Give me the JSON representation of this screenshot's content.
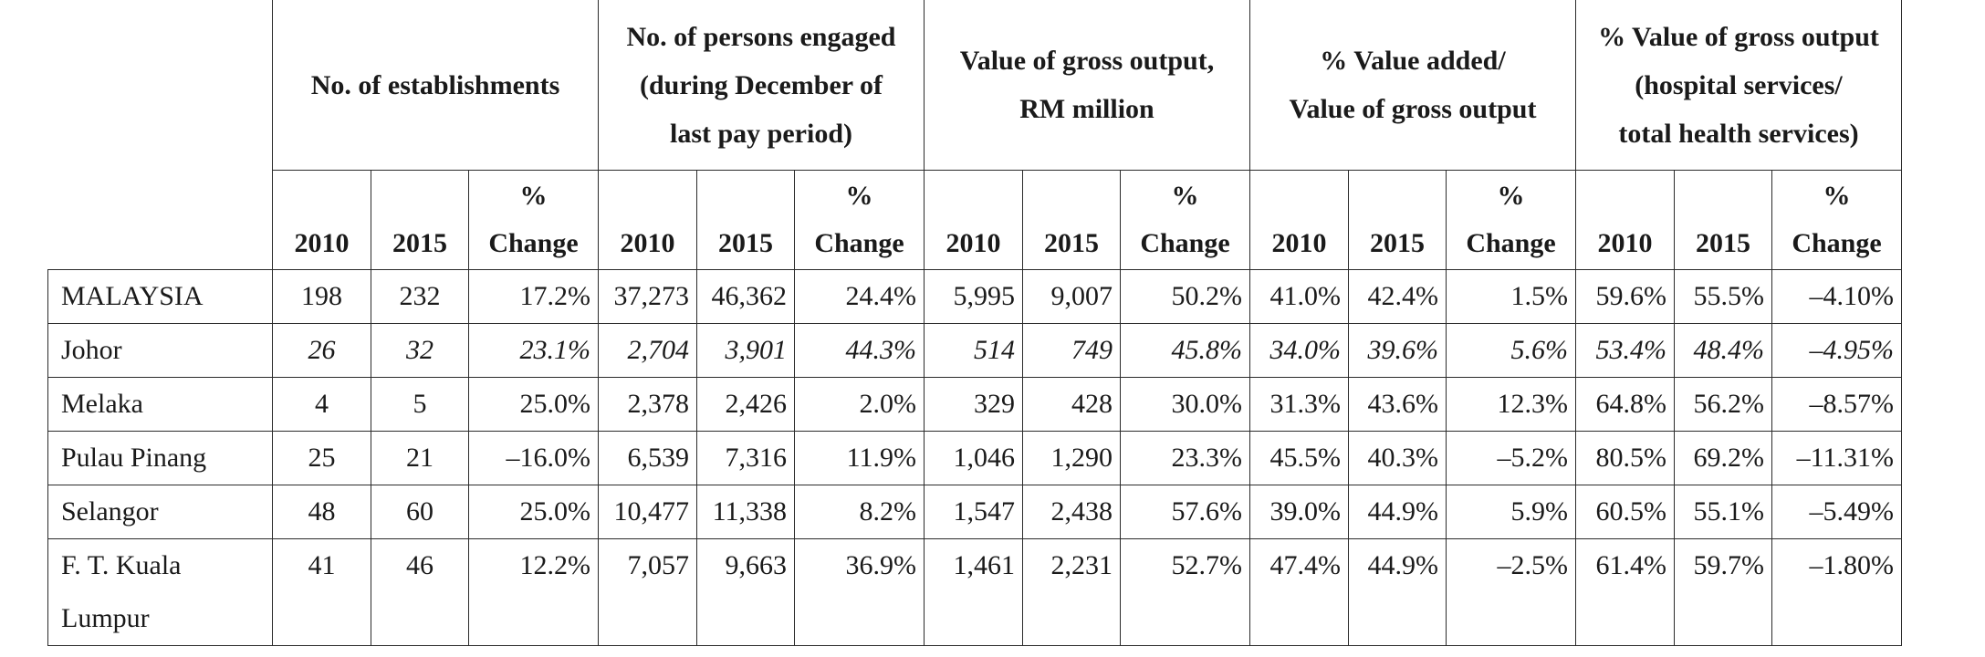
{
  "group_headers": [
    "No. of establishments",
    "No. of persons engaged\n(during December of\nlast pay period)",
    "Value of gross output,\nRM million",
    "% Value added/\nValue of gross output",
    "% Value of gross output\n(hospital services/\ntotal health services)"
  ],
  "sub_headers": {
    "y1": "2010",
    "y2": "2015",
    "chg": "%\nChange"
  },
  "rows": [
    {
      "region": "MALAYSIA",
      "italic": false,
      "cells": [
        "198",
        "232",
        "17.2%",
        "37,273",
        "46,362",
        "24.4%",
        "5,995",
        "9,007",
        "50.2%",
        "41.0%",
        "42.4%",
        "1.5%",
        "59.6%",
        "55.5%",
        "–4.10%"
      ]
    },
    {
      "region": "Johor",
      "italic": true,
      "cells": [
        "26",
        "32",
        "23.1%",
        "2,704",
        "3,901",
        "44.3%",
        "514",
        "749",
        "45.8%",
        "34.0%",
        "39.6%",
        "5.6%",
        "53.4%",
        "48.4%",
        "–4.95%"
      ]
    },
    {
      "region": "Melaka",
      "italic": false,
      "cells": [
        "4",
        "5",
        "25.0%",
        "2,378",
        "2,426",
        "2.0%",
        "329",
        "428",
        "30.0%",
        "31.3%",
        "43.6%",
        "12.3%",
        "64.8%",
        "56.2%",
        "–8.57%"
      ]
    },
    {
      "region": "Pulau Pinang",
      "italic": false,
      "cells": [
        "25",
        "21",
        "–16.0%",
        "6,539",
        "7,316",
        "11.9%",
        "1,046",
        "1,290",
        "23.3%",
        "45.5%",
        "40.3%",
        "–5.2%",
        "80.5%",
        "69.2%",
        "–11.31%"
      ]
    },
    {
      "region": "Selangor",
      "italic": false,
      "cells": [
        "48",
        "60",
        "25.0%",
        "10,477",
        "11,338",
        "8.2%",
        "1,547",
        "2,438",
        "57.6%",
        "39.0%",
        "44.9%",
        "5.9%",
        "60.5%",
        "55.1%",
        "–5.49%"
      ]
    },
    {
      "region": "F. T. Kuala Lumpur",
      "italic": false,
      "cells": [
        "41",
        "46",
        "12.2%",
        "7,057",
        "9,663",
        "36.9%",
        "1,461",
        "2,231",
        "52.7%",
        "47.4%",
        "44.9%",
        "–2.5%",
        "61.4%",
        "59.7%",
        "–1.80%"
      ]
    }
  ]
}
